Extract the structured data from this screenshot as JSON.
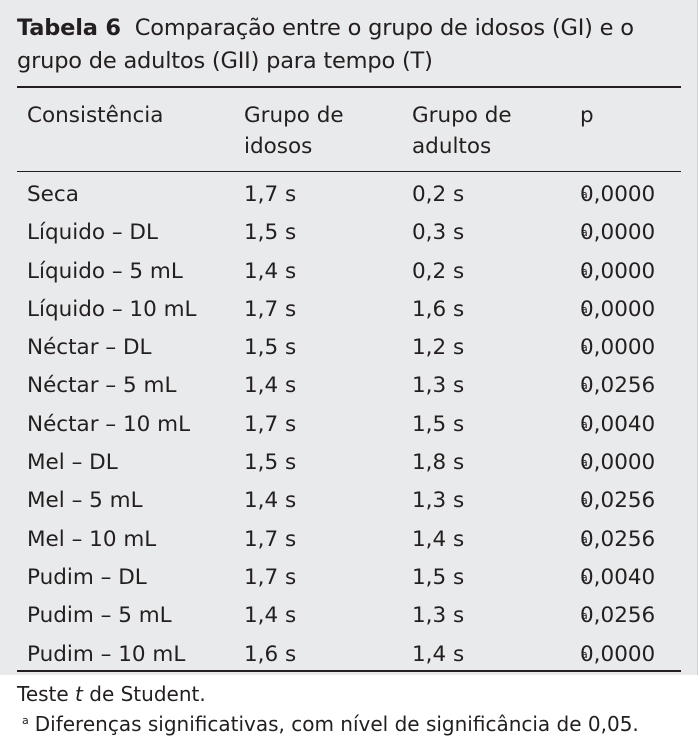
{
  "table": {
    "label": "Tabela 6",
    "title_line1": "Comparação entre o grupo de idosos (GI) e o",
    "title_line2": "grupo de adultos (GII) para tempo (T)",
    "headers": [
      {
        "line1": "Consistência",
        "line2": ""
      },
      {
        "line1": "Grupo de",
        "line2": "idosos"
      },
      {
        "line1": "Grupo de",
        "line2": "adultos"
      },
      {
        "line1": "p",
        "line2": ""
      }
    ],
    "rows": [
      {
        "consistencia": "Seca",
        "idosos": "1,7 s",
        "adultos": "0,2 s",
        "p": "0,0000",
        "mark": "a"
      },
      {
        "consistencia": "Líquido – DL",
        "idosos": "1,5 s",
        "adultos": "0,3 s",
        "p": "0,0000",
        "mark": "a"
      },
      {
        "consistencia": "Líquido – 5 mL",
        "idosos": "1,4 s",
        "adultos": "0,2 s",
        "p": "0,0000",
        "mark": "a"
      },
      {
        "consistencia": "Líquido – 10 mL",
        "idosos": "1,7 s",
        "adultos": "1,6 s",
        "p": "0,0000",
        "mark": "a"
      },
      {
        "consistencia": "Néctar – DL",
        "idosos": "1,5 s",
        "adultos": "1,2 s",
        "p": "0,0000",
        "mark": "a"
      },
      {
        "consistencia": "Néctar – 5 mL",
        "idosos": "1,4 s",
        "adultos": "1,3 s",
        "p": "0,0256",
        "mark": "a"
      },
      {
        "consistencia": "Néctar – 10 mL",
        "idosos": "1,7 s",
        "adultos": "1,5 s",
        "p": "0,0040",
        "mark": "a"
      },
      {
        "consistencia": "Mel – DL",
        "idosos": "1,5 s",
        "adultos": "1,8 s",
        "p": "0,0000",
        "mark": "a"
      },
      {
        "consistencia": "Mel – 5 mL",
        "idosos": "1,4 s",
        "adultos": "1,3 s",
        "p": "0,0256",
        "mark": "a"
      },
      {
        "consistencia": "Mel – 10 mL",
        "idosos": "1,7 s",
        "adultos": "1,4 s",
        "p": "0,0256",
        "mark": "a"
      },
      {
        "consistencia": "Pudim – DL",
        "idosos": "1,7 s",
        "adultos": "1,5 s",
        "p": "0,0040",
        "mark": "a"
      },
      {
        "consistencia": "Pudim – 5 mL",
        "idosos": "1,4 s",
        "adultos": "1,3 s",
        "p": "0,0256",
        "mark": "a"
      },
      {
        "consistencia": "Pudim – 10 mL",
        "idosos": "1,6 s",
        "adultos": "1,4 s",
        "p": "0,0000",
        "mark": "a"
      }
    ]
  },
  "footnotes": {
    "test_prefix": "Teste ",
    "test_italic": "t",
    "test_suffix": " de Student.",
    "mark": "a",
    "significance": "Diferenças significativas, com nível de significância de 0,05."
  },
  "colors": {
    "table_background": "#e9eaeb",
    "text": "#231f20"
  }
}
